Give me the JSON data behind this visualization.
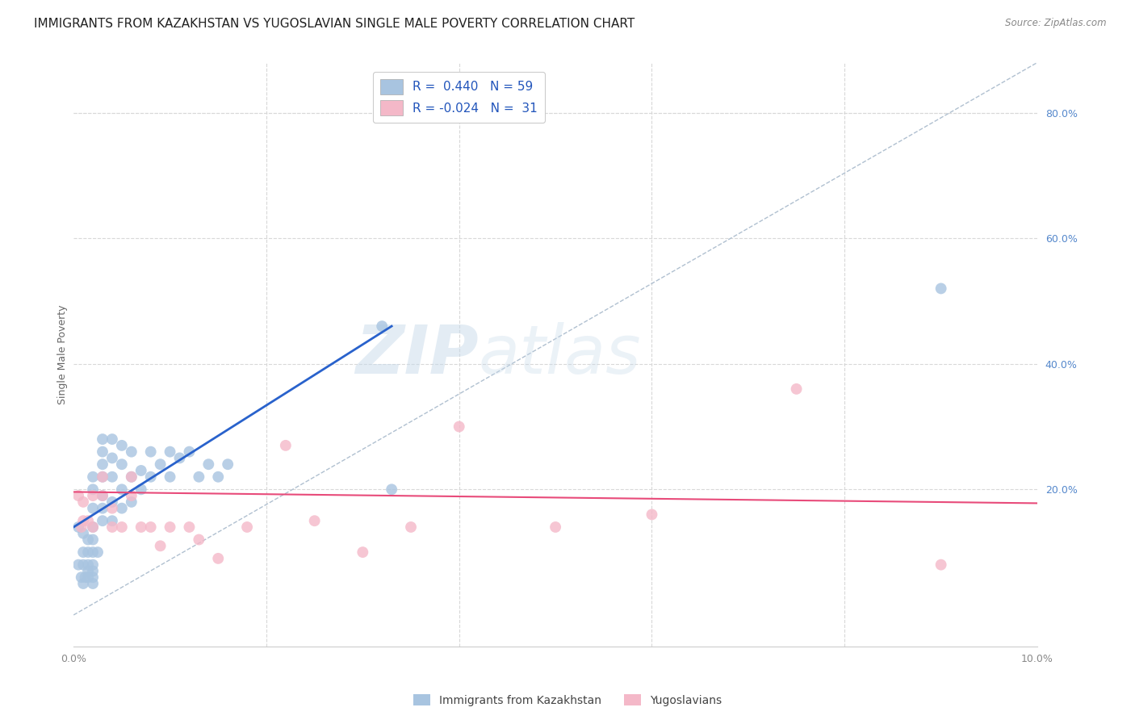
{
  "title": "IMMIGRANTS FROM KAZAKHSTAN VS YUGOSLAVIAN SINGLE MALE POVERTY CORRELATION CHART",
  "source": "Source: ZipAtlas.com",
  "ylabel": "Single Male Poverty",
  "xlim": [
    0.0,
    0.1
  ],
  "ylim": [
    -0.05,
    0.88
  ],
  "yticks_right": [
    0.2,
    0.4,
    0.6,
    0.8
  ],
  "ytick_labels_right": [
    "20.0%",
    "40.0%",
    "60.0%",
    "80.0%"
  ],
  "r_kazakhstan": 0.44,
  "n_kazakhstan": 59,
  "r_yugoslavian": -0.024,
  "n_yugoslavian": 31,
  "kazakhstan_color": "#a8c4e0",
  "yugoslavian_color": "#f4b8c8",
  "trend_kazakhstan_color": "#2962cc",
  "trend_yugoslavian_color": "#e84b7a",
  "diagonal_color": "#b0c0d0",
  "grid_color": "#d8d8d8",
  "watermark_zip": "ZIP",
  "watermark_atlas": "atlas",
  "legend_label_kazakhstan": "Immigrants from Kazakhstan",
  "legend_label_yugoslavian": "Yugoslavians",
  "kazakhstan_x": [
    0.0005,
    0.0005,
    0.0008,
    0.001,
    0.001,
    0.001,
    0.001,
    0.0012,
    0.0015,
    0.0015,
    0.0015,
    0.0015,
    0.0015,
    0.002,
    0.002,
    0.002,
    0.002,
    0.002,
    0.002,
    0.002,
    0.002,
    0.002,
    0.002,
    0.0025,
    0.003,
    0.003,
    0.003,
    0.003,
    0.003,
    0.003,
    0.003,
    0.004,
    0.004,
    0.004,
    0.004,
    0.004,
    0.005,
    0.005,
    0.005,
    0.005,
    0.006,
    0.006,
    0.006,
    0.007,
    0.007,
    0.008,
    0.008,
    0.009,
    0.01,
    0.01,
    0.011,
    0.012,
    0.013,
    0.014,
    0.015,
    0.016,
    0.032,
    0.033,
    0.09
  ],
  "kazakhstan_y": [
    0.14,
    0.08,
    0.06,
    0.05,
    0.08,
    0.1,
    0.13,
    0.06,
    0.06,
    0.07,
    0.08,
    0.1,
    0.12,
    0.05,
    0.06,
    0.07,
    0.08,
    0.1,
    0.12,
    0.14,
    0.17,
    0.2,
    0.22,
    0.1,
    0.15,
    0.17,
    0.19,
    0.22,
    0.24,
    0.26,
    0.28,
    0.15,
    0.18,
    0.22,
    0.25,
    0.28,
    0.17,
    0.2,
    0.24,
    0.27,
    0.18,
    0.22,
    0.26,
    0.2,
    0.23,
    0.22,
    0.26,
    0.24,
    0.22,
    0.26,
    0.25,
    0.26,
    0.22,
    0.24,
    0.22,
    0.24,
    0.46,
    0.2,
    0.52
  ],
  "yugoslavian_x": [
    0.0005,
    0.0008,
    0.001,
    0.001,
    0.0015,
    0.002,
    0.002,
    0.003,
    0.003,
    0.004,
    0.004,
    0.005,
    0.006,
    0.006,
    0.007,
    0.008,
    0.009,
    0.01,
    0.012,
    0.013,
    0.015,
    0.018,
    0.022,
    0.025,
    0.03,
    0.035,
    0.04,
    0.05,
    0.06,
    0.075,
    0.09
  ],
  "yugoslavian_y": [
    0.19,
    0.14,
    0.15,
    0.18,
    0.15,
    0.14,
    0.19,
    0.19,
    0.22,
    0.14,
    0.17,
    0.14,
    0.19,
    0.22,
    0.14,
    0.14,
    0.11,
    0.14,
    0.14,
    0.12,
    0.09,
    0.14,
    0.27,
    0.15,
    0.1,
    0.14,
    0.3,
    0.14,
    0.16,
    0.36,
    0.08
  ],
  "background_color": "#ffffff",
  "title_fontsize": 11,
  "axis_label_fontsize": 9,
  "tick_fontsize": 9,
  "tick_color_right": "#5588cc",
  "tick_color_x": "#888888",
  "trend_kaz_x0": 0.0,
  "trend_kaz_y0": 0.14,
  "trend_kaz_x1": 0.033,
  "trend_kaz_y1": 0.46,
  "trend_yug_x0": 0.0,
  "trend_yug_y0": 0.196,
  "trend_yug_x1": 0.1,
  "trend_yug_y1": 0.178
}
